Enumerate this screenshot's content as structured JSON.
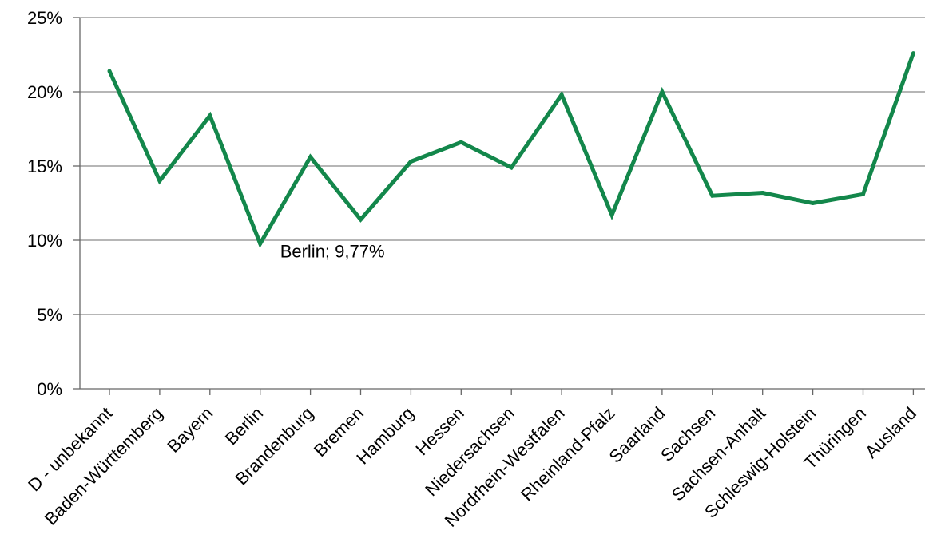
{
  "chart_data": {
    "type": "line",
    "title": "",
    "xlabel": "",
    "ylabel": "",
    "categories": [
      "D - unbekannt",
      "Baden-Württemberg",
      "Bayern",
      "Berlin",
      "Brandenburg",
      "Bremen",
      "Hamburg",
      "Hessen",
      "Niedersachsen",
      "Nordrhein-Westfalen",
      "Rheinland-Pfalz",
      "Saarland",
      "Sachsen",
      "Sachsen-Anhalt",
      "Schleswig-Holstein",
      "Thüringen",
      "Ausland"
    ],
    "series": [
      {
        "values": [
          21.4,
          14.0,
          18.4,
          9.77,
          15.6,
          11.4,
          15.3,
          16.6,
          14.9,
          19.8,
          11.7,
          20.0,
          13.0,
          13.2,
          12.5,
          13.1,
          22.6
        ]
      }
    ],
    "ylim": [
      0,
      25
    ],
    "yticks": [
      "0%",
      "5%",
      "10%",
      "15%",
      "20%",
      "25%"
    ],
    "grid": true,
    "legend": "none",
    "colors": {
      "line": "#13874b",
      "grid": "#8a8a8a",
      "axis": "#666666"
    },
    "annotations": [
      {
        "category_index": 3,
        "text": "Berlin; 9,77%"
      }
    ]
  }
}
